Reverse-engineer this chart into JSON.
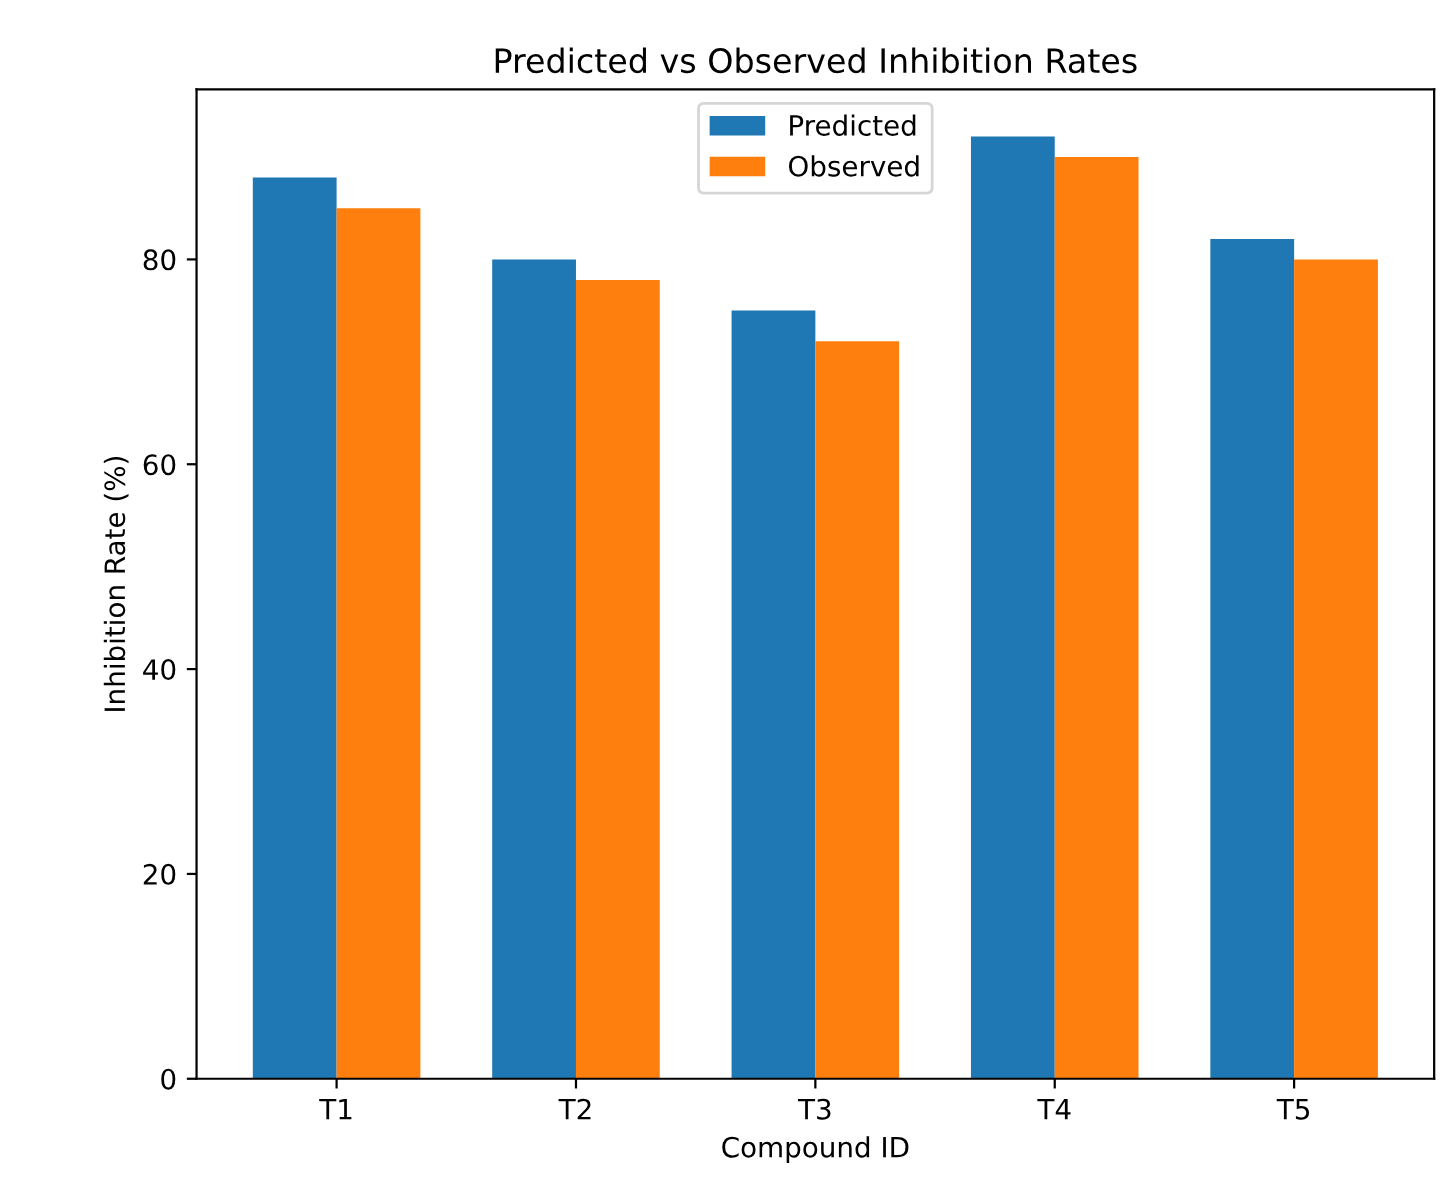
{
  "chart_data": {
    "type": "bar",
    "title": "Predicted vs Observed Inhibition Rates",
    "xlabel": "Compound ID",
    "ylabel": "Inhibition Rate (%)",
    "categories": [
      "T1",
      "T2",
      "T3",
      "T4",
      "T5"
    ],
    "series": [
      {
        "name": "Predicted",
        "color": "#1f77b4",
        "values": [
          88,
          80,
          75,
          92,
          82
        ]
      },
      {
        "name": "Observed",
        "color": "#ff7f0e",
        "values": [
          85,
          78,
          72,
          90,
          80
        ]
      }
    ],
    "ylim": [
      0,
      96.6
    ],
    "yticks": [
      0,
      20,
      40,
      60,
      80
    ],
    "grid": false,
    "legend": "top"
  }
}
